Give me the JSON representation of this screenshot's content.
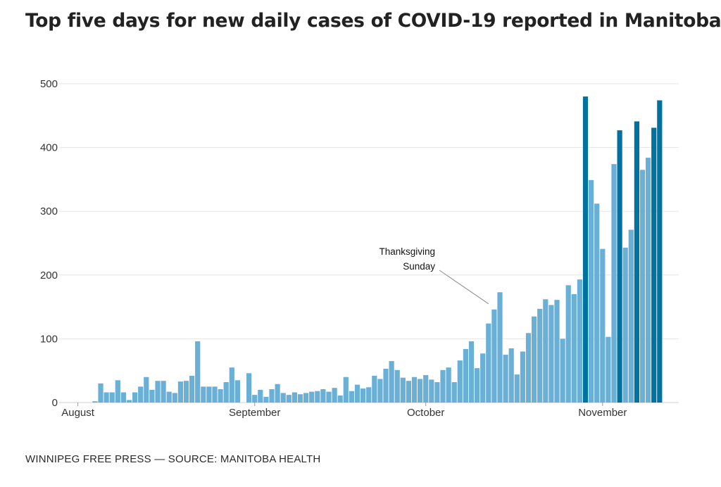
{
  "title": "Top five days for new daily cases of COVID-19 reported in Manitoba",
  "source": "WINNIPEG FREE PRESS — SOURCE: MANITOBA HEALTH",
  "colors": {
    "regular": "#6aafd6",
    "top_five": "#00729f",
    "grid": "#e6e6e6",
    "axis": "#cfcfcf"
  },
  "chart_data": {
    "type": "bar",
    "title": "Top five days for new daily cases of COVID-19 reported in Manitoba",
    "xlabel": "",
    "ylabel": "",
    "ylim": [
      0,
      500
    ],
    "yticks": [
      0,
      100,
      200,
      300,
      400,
      500
    ],
    "grid": true,
    "x_tick_labels": [
      {
        "label": "August",
        "index": 0
      },
      {
        "label": "September",
        "index": 31
      },
      {
        "label": "October",
        "index": 61
      },
      {
        "label": "November",
        "index": 92
      }
    ],
    "values": [
      0,
      0,
      0,
      2,
      30,
      16,
      16,
      35,
      16,
      4,
      16,
      25,
      40,
      20,
      34,
      34,
      17,
      15,
      33,
      34,
      42,
      96,
      25,
      25,
      25,
      21,
      32,
      55,
      35,
      0,
      46,
      12,
      20,
      9,
      21,
      29,
      15,
      12,
      16,
      13,
      15,
      17,
      18,
      21,
      17,
      23,
      11,
      40,
      18,
      28,
      22,
      24,
      42,
      37,
      53,
      65,
      51,
      39,
      34,
      40,
      37,
      43,
      36,
      32,
      51,
      55,
      32,
      66,
      84,
      96,
      54,
      77,
      124,
      146,
      173,
      75,
      85,
      44,
      80,
      109,
      135,
      147,
      162,
      153,
      161,
      100,
      184,
      170,
      193,
      480,
      349,
      312,
      241,
      103,
      374,
      427,
      243,
      271,
      441,
      365,
      384,
      431,
      474
    ],
    "top_five_indices": [
      89,
      95,
      98,
      101,
      102
    ],
    "annotations": [
      {
        "text_lines": [
          "Thanksgiving",
          "Sunday"
        ],
        "index": 72
      }
    ]
  }
}
